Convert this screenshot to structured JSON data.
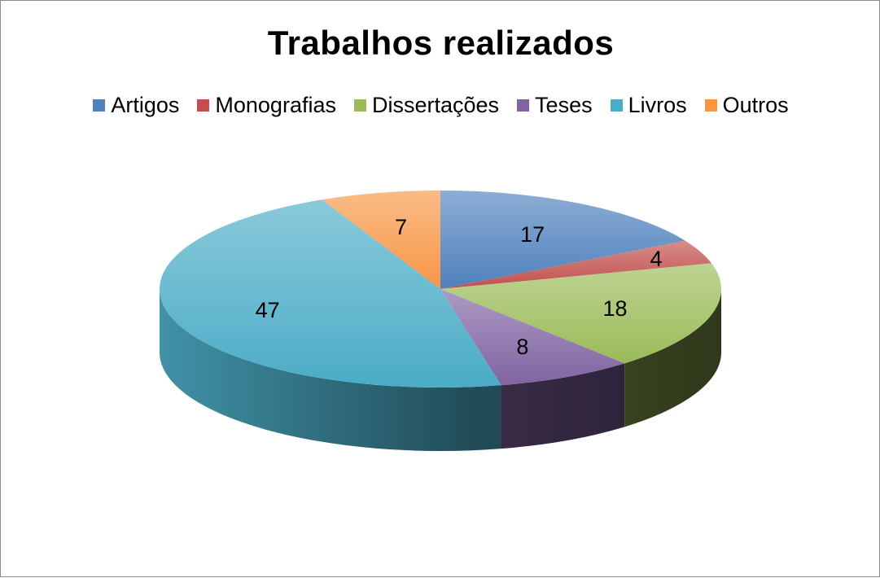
{
  "chart_data": {
    "type": "pie",
    "title": "Trabalhos realizados",
    "legend_position": "top",
    "categories": [
      "Artigos",
      "Monografias",
      "Dissertações",
      "Teses",
      "Livros",
      "Outros"
    ],
    "values": [
      17,
      4,
      18,
      8,
      47,
      7
    ],
    "colors": [
      "#4f81bd",
      "#c0504d",
      "#9bbb59",
      "#8064a2",
      "#4bacc6",
      "#f79646"
    ],
    "data_labels": [
      "17",
      "4",
      "18",
      "8",
      "47",
      "7"
    ],
    "style": "3d-pie"
  }
}
